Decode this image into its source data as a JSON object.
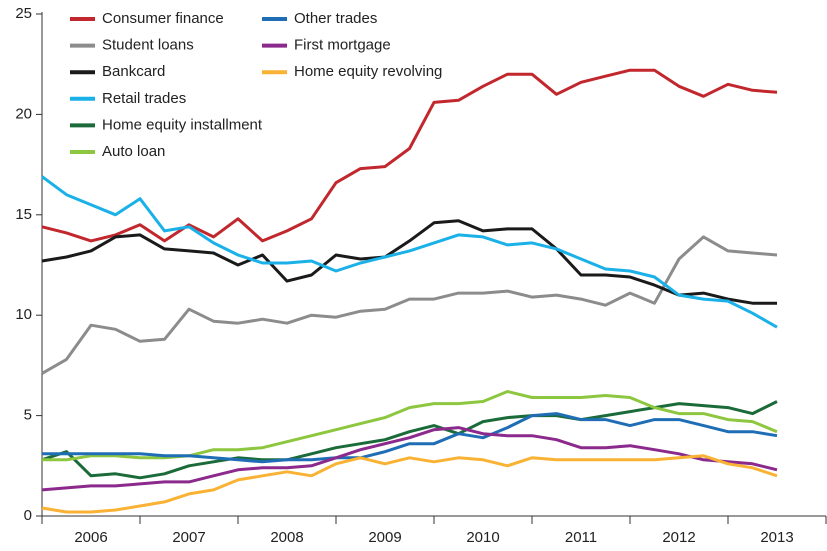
{
  "chart_data": {
    "type": "line",
    "x": [
      2006,
      2006.25,
      2006.5,
      2006.75,
      2007,
      2007.25,
      2007.5,
      2007.75,
      2008,
      2008.25,
      2008.5,
      2008.75,
      2009,
      2009.25,
      2009.5,
      2009.75,
      2010,
      2010.25,
      2010.5,
      2010.75,
      2011,
      2011.25,
      2011.5,
      2011.75,
      2012,
      2012.25,
      2012.5,
      2012.75,
      2013,
      2013.25,
      2013.5
    ],
    "xlim": [
      2006,
      2014
    ],
    "xticks": [
      {
        "value": 2006.5,
        "label": "2006"
      },
      {
        "value": 2007.5,
        "label": "2007"
      },
      {
        "value": 2008.5,
        "label": "2008"
      },
      {
        "value": 2009.5,
        "label": "2009"
      },
      {
        "value": 2010.5,
        "label": "2010"
      },
      {
        "value": 2011.5,
        "label": "2011"
      },
      {
        "value": 2012.5,
        "label": "2012"
      },
      {
        "value": 2013.5,
        "label": "2013"
      }
    ],
    "ylim": [
      0,
      25
    ],
    "yticks": [
      0,
      5,
      10,
      15,
      20,
      25
    ],
    "grid": false,
    "legend": "upper left",
    "series": [
      {
        "name": "Consumer finance",
        "color": "#c1272d",
        "values": [
          14.4,
          14.1,
          13.7,
          14.0,
          14.5,
          13.7,
          14.5,
          13.9,
          14.8,
          13.7,
          14.2,
          14.8,
          16.6,
          17.3,
          17.4,
          18.3,
          20.6,
          20.7,
          21.4,
          22.0,
          22.0,
          21.0,
          21.6,
          21.9,
          22.2,
          22.2,
          21.4,
          20.9,
          21.5,
          21.2,
          21.1
        ]
      },
      {
        "name": "Student loans",
        "color": "#8c8c8c",
        "values": [
          7.1,
          7.8,
          9.5,
          9.3,
          8.7,
          8.8,
          10.3,
          9.7,
          9.6,
          9.8,
          9.6,
          10.0,
          9.9,
          10.2,
          10.3,
          10.8,
          10.8,
          11.1,
          11.1,
          11.2,
          10.9,
          11.0,
          10.8,
          10.5,
          11.1,
          10.6,
          12.8,
          13.9,
          13.2,
          13.1,
          13.0
        ]
      },
      {
        "name": "Bankcard",
        "color": "#1a1a1a",
        "values": [
          12.7,
          12.9,
          13.2,
          13.9,
          14.0,
          13.3,
          13.2,
          13.1,
          12.5,
          13.0,
          11.7,
          12.0,
          13.0,
          12.8,
          12.9,
          13.7,
          14.6,
          14.7,
          14.2,
          14.3,
          14.3,
          13.3,
          12.0,
          12.0,
          11.9,
          11.5,
          11.0,
          11.1,
          10.8,
          10.6,
          10.6
        ]
      },
      {
        "name": "Retail trades",
        "color": "#1ab0e8",
        "values": [
          16.9,
          16.0,
          15.5,
          15.0,
          15.8,
          14.2,
          14.4,
          13.6,
          13.0,
          12.6,
          12.6,
          12.7,
          12.2,
          12.6,
          12.9,
          13.2,
          13.6,
          14.0,
          13.9,
          13.5,
          13.6,
          13.3,
          12.8,
          12.3,
          12.2,
          11.9,
          11.0,
          10.8,
          10.7,
          10.1,
          9.4
        ]
      },
      {
        "name": "Home equity installment",
        "color": "#1b6b3a",
        "values": [
          2.8,
          3.2,
          2.0,
          2.1,
          1.9,
          2.1,
          2.5,
          2.7,
          2.9,
          2.8,
          2.8,
          3.1,
          3.4,
          3.6,
          3.8,
          4.2,
          4.5,
          4.1,
          4.7,
          4.9,
          5.0,
          5.0,
          4.8,
          5.0,
          5.2,
          5.4,
          5.6,
          5.5,
          5.4,
          5.1,
          5.7
        ]
      },
      {
        "name": "Auto loan",
        "color": "#8dc63f",
        "values": [
          2.8,
          2.8,
          3.0,
          3.0,
          2.9,
          2.9,
          3.0,
          3.3,
          3.3,
          3.4,
          3.7,
          4.0,
          4.3,
          4.6,
          4.9,
          5.4,
          5.6,
          5.6,
          5.7,
          6.2,
          5.9,
          5.9,
          5.9,
          6.0,
          5.9,
          5.4,
          5.1,
          5.1,
          4.8,
          4.7,
          4.2
        ]
      },
      {
        "name": "Other trades",
        "color": "#1f6eb5",
        "values": [
          3.1,
          3.1,
          3.1,
          3.1,
          3.1,
          3.0,
          3.0,
          2.9,
          2.8,
          2.7,
          2.8,
          2.8,
          2.9,
          2.9,
          3.2,
          3.6,
          3.6,
          4.1,
          3.9,
          4.4,
          5.0,
          5.1,
          4.8,
          4.8,
          4.5,
          4.8,
          4.8,
          4.5,
          4.2,
          4.2,
          4.0
        ]
      },
      {
        "name": "First mortgage",
        "color": "#8b2a8c",
        "values": [
          1.3,
          1.4,
          1.5,
          1.5,
          1.6,
          1.7,
          1.7,
          2.0,
          2.3,
          2.4,
          2.4,
          2.5,
          2.9,
          3.3,
          3.6,
          3.9,
          4.3,
          4.4,
          4.1,
          4.0,
          4.0,
          3.8,
          3.4,
          3.4,
          3.5,
          3.3,
          3.1,
          2.8,
          2.7,
          2.6,
          2.3
        ]
      },
      {
        "name": "Home equity revolving",
        "color": "#f9b233",
        "values": [
          0.4,
          0.2,
          0.2,
          0.3,
          0.5,
          0.7,
          1.1,
          1.3,
          1.8,
          2.0,
          2.2,
          2.0,
          2.6,
          2.9,
          2.6,
          2.9,
          2.7,
          2.9,
          2.8,
          2.5,
          2.9,
          2.8,
          2.8,
          2.8,
          2.8,
          2.8,
          2.9,
          3.0,
          2.6,
          2.4,
          2.0
        ]
      }
    ]
  }
}
